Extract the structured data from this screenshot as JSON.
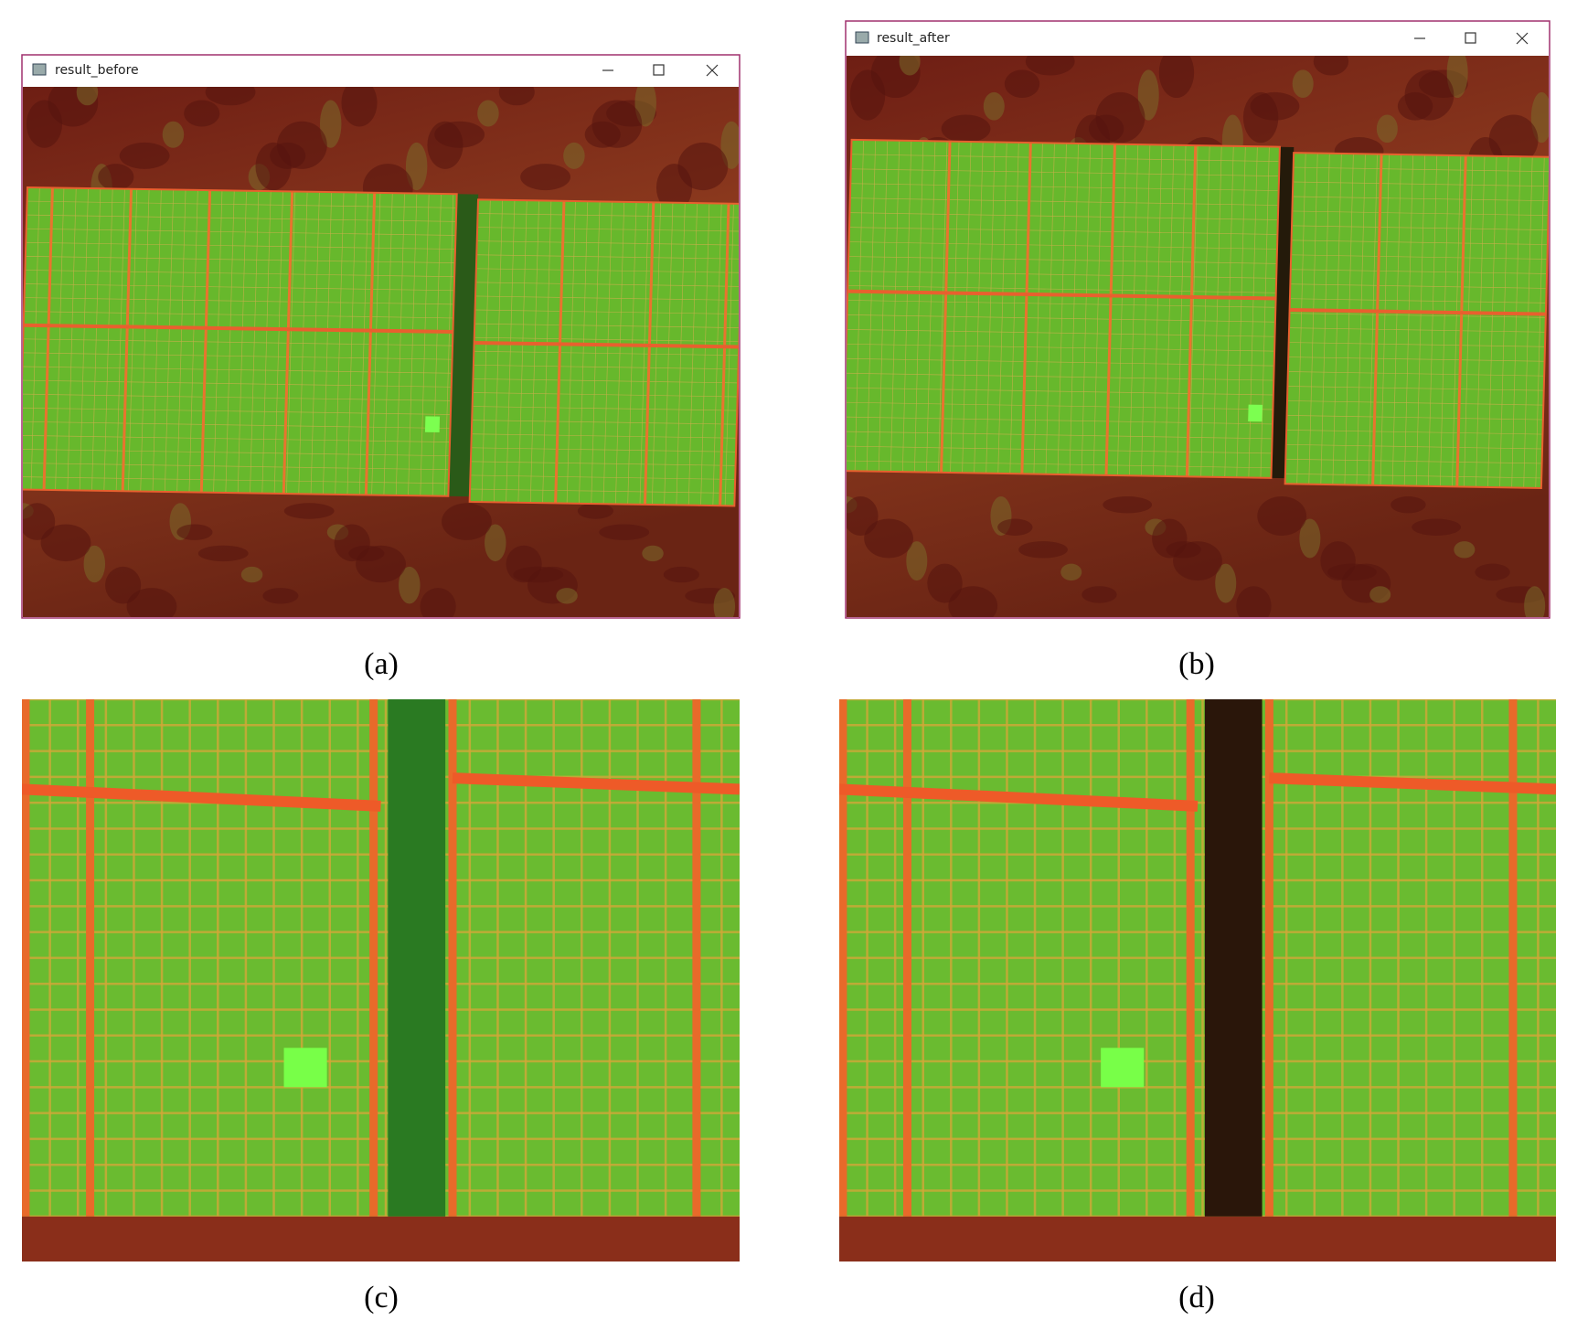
{
  "windows": [
    {
      "title": "result_before",
      "caption": "(a)"
    },
    {
      "title": "result_after",
      "caption": "(b)"
    }
  ],
  "zooms": [
    {
      "caption": "(c)"
    },
    {
      "caption": "(d)"
    }
  ]
}
